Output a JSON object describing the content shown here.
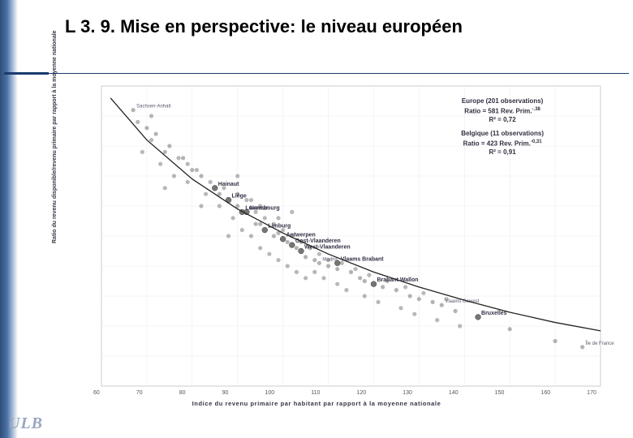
{
  "title": "L 3. 9. Mise en perspective: le niveau européen",
  "logo": "ULB",
  "page_indicator": " ",
  "chart": {
    "type": "scatter",
    "x_label": "Indice du revenu primaire par habitant par rapport à la moyenne nationale",
    "y_label": "Ratio du revenu disponible/revenu primaire par rapport à la moyenne nationale",
    "xlim": [
      60,
      170
    ],
    "ylim": [
      0.75,
      1.25
    ],
    "xtick_step": 10,
    "ytick_step": 0.05,
    "xticks": [
      "60",
      "70",
      "80",
      "90",
      "100",
      "110",
      "120",
      "130",
      "140",
      "150",
      "160",
      "170"
    ],
    "background_color": "#ffffff",
    "grid_color": "#e4e4e4",
    "point_color": "#9a9a9a",
    "point_radius": 2.6,
    "belgium_point_color": "#6f6f6f",
    "belgium_point_radius": 3.4,
    "trend_color": "#222222",
    "trend_width": 1.3,
    "label_color": "#5a5a70",
    "label_fontsize": 6,
    "belgium_label_color": "#303044",
    "belgium_label_fontsize": 7
  },
  "stats": {
    "europe_title": "Europe (201 observations)",
    "europe_eq": "Ratio = 581 Rev. Prim.",
    "europe_exp": "-.38",
    "europe_r2": "R² = 0,72",
    "belgium_title": "Belgique (11 observations)",
    "belgium_eq": "Ratio = 423 Rev. Prim.",
    "belgium_exp": "-0,31",
    "belgium_r2": "R² = 0,91"
  },
  "labeled_points": [
    {
      "x": 67,
      "y": 1.21,
      "label": "Sachsen-Anhalt"
    },
    {
      "x": 70,
      "y": 1.18,
      "label": ""
    },
    {
      "x": 72,
      "y": 1.17,
      "label": ""
    },
    {
      "x": 75,
      "y": 1.15,
      "label": ""
    },
    {
      "x": 78,
      "y": 1.13,
      "label": ""
    },
    {
      "x": 80,
      "y": 1.11,
      "label": ""
    },
    {
      "x": 82,
      "y": 1.1,
      "label": ""
    },
    {
      "x": 85,
      "y": 1.08,
      "label": "Hainaut",
      "belgium": true
    },
    {
      "x": 86,
      "y": 1.07,
      "label": ""
    },
    {
      "x": 88,
      "y": 1.06,
      "label": "Liège",
      "belgium": true
    },
    {
      "x": 90,
      "y": 1.05,
      "label": ""
    },
    {
      "x": 91,
      "y": 1.04,
      "label": "Luxembourg",
      "belgium": true
    },
    {
      "x": 92,
      "y": 1.04,
      "label": "Namur",
      "belgium": true
    },
    {
      "x": 94,
      "y": 1.02,
      "label": ""
    },
    {
      "x": 95,
      "y": 1.02,
      "label": ""
    },
    {
      "x": 96,
      "y": 1.01,
      "label": "Limburg",
      "belgium": true
    },
    {
      "x": 98,
      "y": 1.0,
      "label": ""
    },
    {
      "x": 99,
      "y": 1.005,
      "label": ""
    },
    {
      "x": 100,
      "y": 0.995,
      "label": "Antwerpen",
      "belgium": true
    },
    {
      "x": 101,
      "y": 0.99,
      "label": ""
    },
    {
      "x": 102,
      "y": 0.985,
      "label": "Oost-Vlaanderen",
      "belgium": true
    },
    {
      "x": 103,
      "y": 0.98,
      "label": ""
    },
    {
      "x": 104,
      "y": 0.975,
      "label": "West-Vlaanderen",
      "belgium": true
    },
    {
      "x": 105,
      "y": 0.965,
      "label": ""
    },
    {
      "x": 107,
      "y": 0.96,
      "label": ""
    },
    {
      "x": 108,
      "y": 0.955,
      "label": "Madrid"
    },
    {
      "x": 110,
      "y": 0.95,
      "label": ""
    },
    {
      "x": 112,
      "y": 0.945,
      "label": ""
    },
    {
      "x": 112,
      "y": 0.955,
      "label": "Vlaams Brabant",
      "belgium": true
    },
    {
      "x": 115,
      "y": 0.94,
      "label": ""
    },
    {
      "x": 117,
      "y": 0.93,
      "label": ""
    },
    {
      "x": 118,
      "y": 0.925,
      "label": ""
    },
    {
      "x": 120,
      "y": 0.92,
      "label": "Brabant Wallon",
      "belgium": true
    },
    {
      "x": 122,
      "y": 0.915,
      "label": ""
    },
    {
      "x": 125,
      "y": 0.91,
      "label": ""
    },
    {
      "x": 128,
      "y": 0.9,
      "label": ""
    },
    {
      "x": 130,
      "y": 0.895,
      "label": ""
    },
    {
      "x": 133,
      "y": 0.89,
      "label": ""
    },
    {
      "x": 135,
      "y": 0.885,
      "label": "Vlaams Gewest"
    },
    {
      "x": 138,
      "y": 0.875,
      "label": ""
    },
    {
      "x": 143,
      "y": 0.865,
      "label": "Bruxelles",
      "belgium": true
    },
    {
      "x": 150,
      "y": 0.845,
      "label": ""
    },
    {
      "x": 160,
      "y": 0.825,
      "label": ""
    },
    {
      "x": 166,
      "y": 0.815,
      "label": "Île de France"
    }
  ],
  "cloud_points": [
    {
      "x": 68,
      "y": 1.19
    },
    {
      "x": 69,
      "y": 1.14
    },
    {
      "x": 71,
      "y": 1.16
    },
    {
      "x": 73,
      "y": 1.12
    },
    {
      "x": 74,
      "y": 1.14
    },
    {
      "x": 76,
      "y": 1.1
    },
    {
      "x": 77,
      "y": 1.13
    },
    {
      "x": 79,
      "y": 1.09
    },
    {
      "x": 81,
      "y": 1.11
    },
    {
      "x": 83,
      "y": 1.07
    },
    {
      "x": 84,
      "y": 1.09
    },
    {
      "x": 86,
      "y": 1.05
    },
    {
      "x": 87,
      "y": 1.08
    },
    {
      "x": 89,
      "y": 1.03
    },
    {
      "x": 90,
      "y": 1.07
    },
    {
      "x": 91,
      "y": 1.01
    },
    {
      "x": 92,
      "y": 1.06
    },
    {
      "x": 93,
      "y": 1.0
    },
    {
      "x": 94,
      "y": 1.04
    },
    {
      "x": 95,
      "y": 0.98
    },
    {
      "x": 96,
      "y": 1.03
    },
    {
      "x": 97,
      "y": 0.97
    },
    {
      "x": 98,
      "y": 1.02
    },
    {
      "x": 99,
      "y": 0.96
    },
    {
      "x": 100,
      "y": 1.01
    },
    {
      "x": 101,
      "y": 0.95
    },
    {
      "x": 102,
      "y": 1.0
    },
    {
      "x": 103,
      "y": 0.94
    },
    {
      "x": 104,
      "y": 0.99
    },
    {
      "x": 105,
      "y": 0.93
    },
    {
      "x": 106,
      "y": 0.98
    },
    {
      "x": 107,
      "y": 0.94
    },
    {
      "x": 108,
      "y": 0.97
    },
    {
      "x": 109,
      "y": 0.93
    },
    {
      "x": 110,
      "y": 0.96
    },
    {
      "x": 112,
      "y": 0.92
    },
    {
      "x": 113,
      "y": 0.955
    },
    {
      "x": 114,
      "y": 0.91
    },
    {
      "x": 116,
      "y": 0.945
    },
    {
      "x": 118,
      "y": 0.9
    },
    {
      "x": 119,
      "y": 0.935
    },
    {
      "x": 121,
      "y": 0.89
    },
    {
      "x": 123,
      "y": 0.925
    },
    {
      "x": 126,
      "y": 0.88
    },
    {
      "x": 127,
      "y": 0.915
    },
    {
      "x": 129,
      "y": 0.87
    },
    {
      "x": 131,
      "y": 0.905
    },
    {
      "x": 134,
      "y": 0.86
    },
    {
      "x": 136,
      "y": 0.895
    },
    {
      "x": 139,
      "y": 0.85
    },
    {
      "x": 90,
      "y": 1.1
    },
    {
      "x": 95,
      "y": 1.05
    },
    {
      "x": 88,
      "y": 1.0
    },
    {
      "x": 102,
      "y": 1.04
    },
    {
      "x": 82,
      "y": 1.05
    },
    {
      "x": 79,
      "y": 1.12
    },
    {
      "x": 74,
      "y": 1.08
    },
    {
      "x": 71,
      "y": 1.2
    },
    {
      "x": 99,
      "y": 1.03
    },
    {
      "x": 93,
      "y": 1.06
    }
  ],
  "trend_curve": [
    {
      "x": 62,
      "y": 1.23
    },
    {
      "x": 70,
      "y": 1.16
    },
    {
      "x": 80,
      "y": 1.095
    },
    {
      "x": 90,
      "y": 1.045
    },
    {
      "x": 100,
      "y": 1.005
    },
    {
      "x": 110,
      "y": 0.97
    },
    {
      "x": 120,
      "y": 0.94
    },
    {
      "x": 130,
      "y": 0.915
    },
    {
      "x": 140,
      "y": 0.893
    },
    {
      "x": 150,
      "y": 0.873
    },
    {
      "x": 160,
      "y": 0.856
    },
    {
      "x": 170,
      "y": 0.842
    }
  ]
}
